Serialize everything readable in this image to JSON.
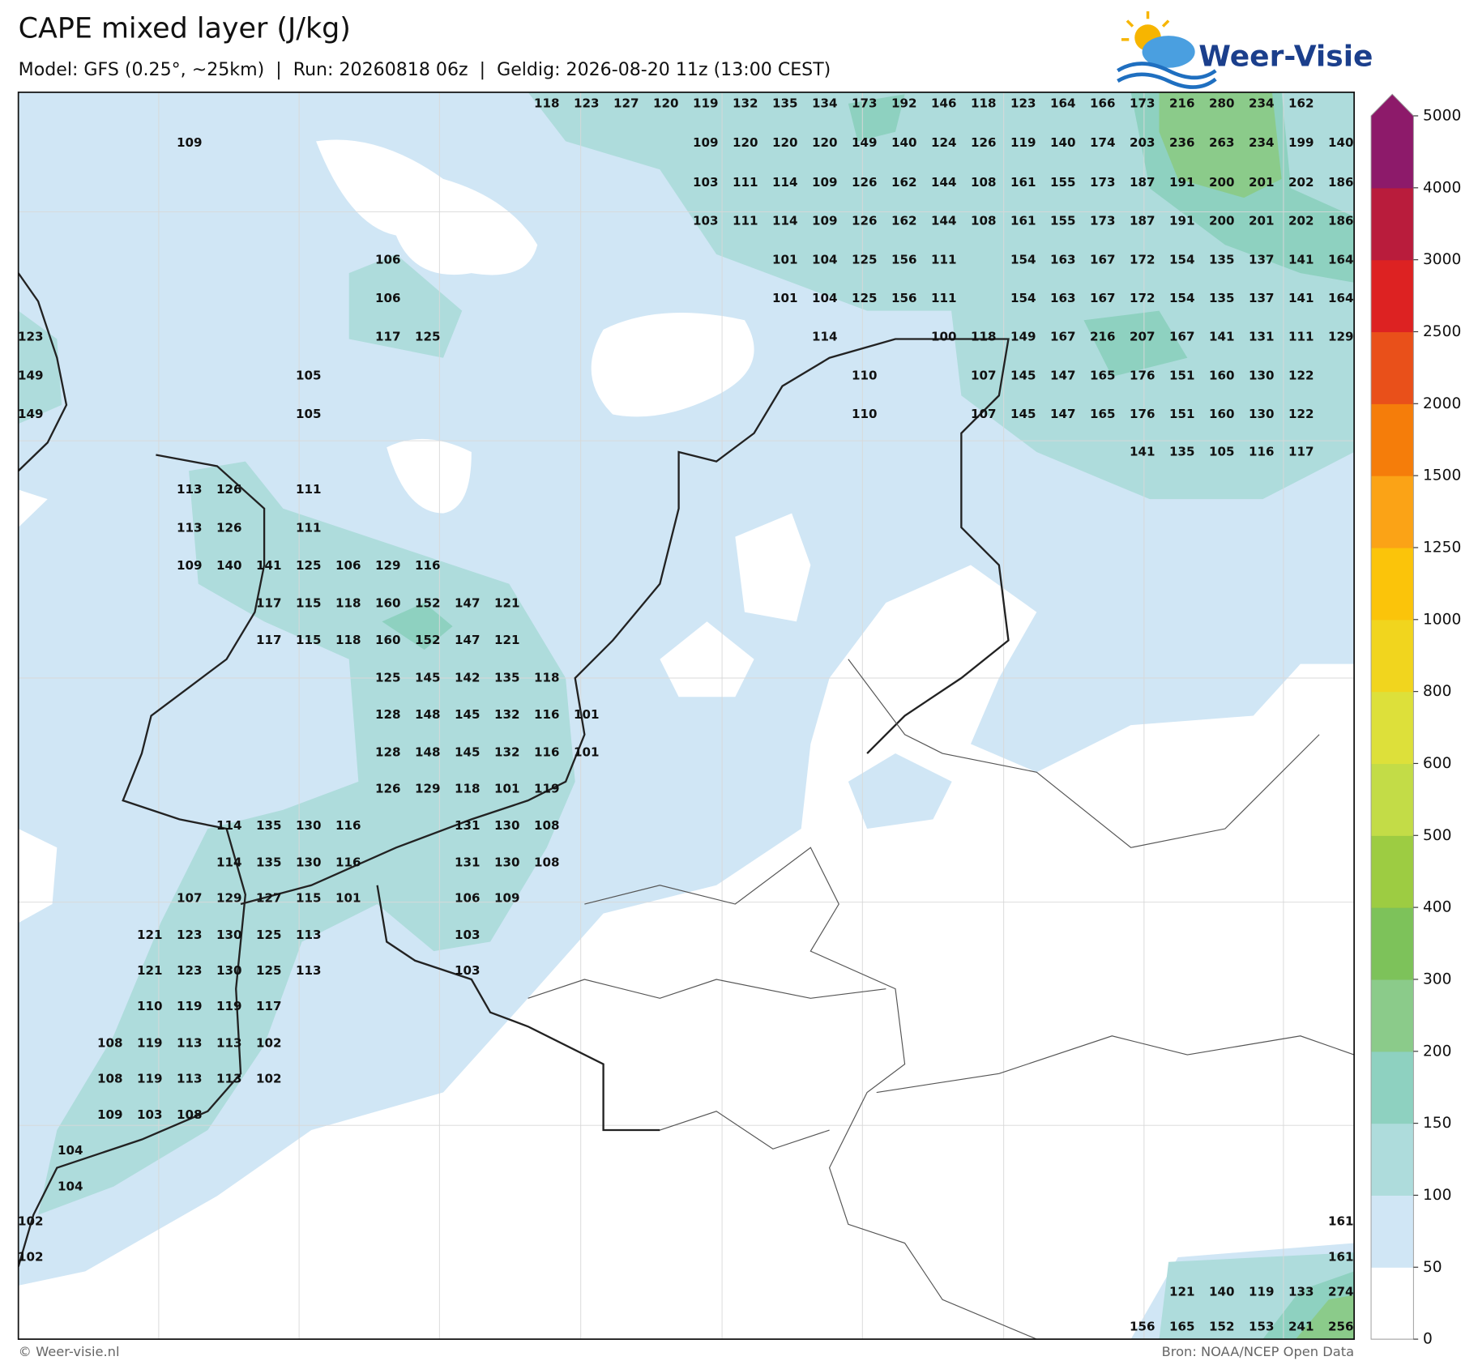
{
  "header": {
    "title": "CAPE mixed layer (J/kg)",
    "subtitle": "Model: GFS (0.25°, ~25km)  |  Run: 20260818 06z  |  Geldig: 2026-08-20 11z (13:00 CEST)",
    "logo": "Weer-Visie"
  },
  "map": {
    "grid": [
      [
        null,
        null,
        null,
        null,
        null,
        null,
        null,
        null,
        null,
        null,
        null,
        null,
        null,
        118,
        123,
        127,
        120,
        119,
        132,
        135,
        134,
        173,
        192,
        146,
        118,
        123,
        164,
        166,
        173,
        216,
        280,
        234,
        162,
        null
      ],
      [
        null,
        null,
        null,
        null,
        109,
        null,
        null,
        null,
        null,
        null,
        null,
        null,
        null,
        null,
        null,
        null,
        null,
        109,
        120,
        120,
        120,
        149,
        140,
        124,
        126,
        119,
        140,
        174,
        203,
        236,
        263,
        234,
        199,
        140
      ],
      [
        null,
        null,
        null,
        null,
        null,
        null,
        null,
        null,
        null,
        null,
        null,
        null,
        null,
        null,
        null,
        null,
        null,
        103,
        111,
        114,
        109,
        126,
        162,
        144,
        108,
        161,
        155,
        173,
        187,
        191,
        200,
        201,
        202,
        186
      ],
      [
        null,
        null,
        null,
        null,
        null,
        null,
        null,
        null,
        null,
        null,
        null,
        null,
        null,
        null,
        null,
        null,
        null,
        103,
        111,
        114,
        109,
        126,
        162,
        144,
        108,
        161,
        155,
        173,
        187,
        191,
        200,
        201,
        202,
        186
      ],
      [
        null,
        null,
        null,
        null,
        null,
        null,
        null,
        null,
        null,
        106,
        null,
        null,
        null,
        null,
        null,
        null,
        null,
        null,
        null,
        101,
        104,
        125,
        156,
        111,
        null,
        154,
        163,
        167,
        172,
        154,
        135,
        137,
        141,
        164
      ],
      [
        null,
        null,
        null,
        null,
        null,
        null,
        null,
        null,
        null,
        106,
        null,
        null,
        null,
        null,
        null,
        null,
        null,
        null,
        null,
        101,
        104,
        125,
        156,
        111,
        null,
        154,
        163,
        167,
        172,
        154,
        135,
        137,
        141,
        164
      ],
      [
        123,
        null,
        null,
        null,
        null,
        null,
        null,
        null,
        null,
        117,
        125,
        null,
        null,
        null,
        null,
        null,
        null,
        null,
        null,
        null,
        114,
        null,
        null,
        100,
        118,
        149,
        167,
        216,
        207,
        167,
        141,
        131,
        111,
        129
      ],
      [
        149,
        null,
        null,
        null,
        null,
        null,
        null,
        105,
        null,
        null,
        null,
        null,
        null,
        null,
        null,
        null,
        null,
        null,
        null,
        null,
        null,
        110,
        null,
        null,
        107,
        145,
        147,
        165,
        176,
        151,
        160,
        130,
        122,
        null
      ],
      [
        149,
        null,
        null,
        null,
        null,
        null,
        null,
        105,
        null,
        null,
        null,
        null,
        null,
        null,
        null,
        null,
        null,
        null,
        null,
        null,
        null,
        110,
        null,
        null,
        107,
        145,
        147,
        165,
        176,
        151,
        160,
        130,
        122,
        null
      ],
      [
        null,
        null,
        null,
        null,
        null,
        null,
        null,
        null,
        null,
        null,
        null,
        null,
        null,
        null,
        null,
        null,
        null,
        null,
        null,
        null,
        null,
        null,
        null,
        null,
        null,
        null,
        null,
        null,
        141,
        135,
        105,
        116,
        117,
        null
      ],
      [
        null,
        null,
        null,
        null,
        113,
        126,
        null,
        111,
        null,
        null,
        null,
        null,
        null,
        null,
        null,
        null,
        null,
        null,
        null,
        null,
        null,
        null,
        null,
        null,
        null,
        null,
        null,
        null,
        null,
        null,
        null,
        null,
        null,
        null
      ],
      [
        null,
        null,
        null,
        null,
        113,
        126,
        null,
        111,
        null,
        null,
        null,
        null,
        null,
        null,
        null,
        null,
        null,
        null,
        null,
        null,
        null,
        null,
        null,
        null,
        null,
        null,
        null,
        null,
        null,
        null,
        null,
        null,
        null,
        null
      ],
      [
        null,
        null,
        null,
        null,
        109,
        140,
        141,
        125,
        106,
        129,
        116,
        null,
        null,
        null,
        null,
        null,
        null,
        null,
        null,
        null,
        null,
        null,
        null,
        null,
        null,
        null,
        null,
        null,
        null,
        null,
        null,
        null,
        null,
        null
      ],
      [
        null,
        null,
        null,
        null,
        null,
        null,
        117,
        115,
        118,
        160,
        152,
        147,
        121,
        null,
        null,
        null,
        null,
        null,
        null,
        null,
        null,
        null,
        null,
        null,
        null,
        null,
        null,
        null,
        null,
        null,
        null,
        null,
        null,
        null
      ],
      [
        null,
        null,
        null,
        null,
        null,
        null,
        117,
        115,
        118,
        160,
        152,
        147,
        121,
        null,
        null,
        null,
        null,
        null,
        null,
        null,
        null,
        null,
        null,
        null,
        null,
        null,
        null,
        null,
        null,
        null,
        null,
        null,
        null,
        null
      ],
      [
        null,
        null,
        null,
        null,
        null,
        null,
        null,
        null,
        null,
        125,
        145,
        142,
        135,
        118,
        null,
        null,
        null,
        null,
        null,
        null,
        null,
        null,
        null,
        null,
        null,
        null,
        null,
        null,
        null,
        null,
        null,
        null,
        null,
        null
      ],
      [
        null,
        null,
        null,
        null,
        null,
        null,
        null,
        null,
        null,
        128,
        148,
        145,
        132,
        116,
        101,
        null,
        null,
        null,
        null,
        null,
        null,
        null,
        null,
        null,
        null,
        null,
        null,
        null,
        null,
        null,
        null,
        null,
        null,
        null
      ],
      [
        null,
        null,
        null,
        null,
        null,
        null,
        null,
        null,
        null,
        128,
        148,
        145,
        132,
        116,
        101,
        null,
        null,
        null,
        null,
        null,
        null,
        null,
        null,
        null,
        null,
        null,
        null,
        null,
        null,
        null,
        null,
        null,
        null,
        null
      ],
      [
        null,
        null,
        null,
        null,
        null,
        null,
        null,
        null,
        null,
        126,
        129,
        118,
        101,
        119,
        null,
        null,
        null,
        null,
        null,
        null,
        null,
        null,
        null,
        null,
        null,
        null,
        null,
        null,
        null,
        null,
        null,
        null,
        null,
        null
      ],
      [
        null,
        null,
        null,
        null,
        null,
        114,
        135,
        130,
        116,
        null,
        null,
        131,
        130,
        108,
        null,
        null,
        null,
        null,
        null,
        null,
        null,
        null,
        null,
        null,
        null,
        null,
        null,
        null,
        null,
        null,
        null,
        null,
        null,
        null
      ],
      [
        null,
        null,
        null,
        null,
        null,
        114,
        135,
        130,
        116,
        null,
        null,
        131,
        130,
        108,
        null,
        null,
        null,
        null,
        null,
        null,
        null,
        null,
        null,
        null,
        null,
        null,
        null,
        null,
        null,
        null,
        null,
        null,
        null,
        null
      ],
      [
        null,
        null,
        null,
        null,
        107,
        129,
        127,
        115,
        101,
        null,
        null,
        106,
        109,
        null,
        null,
        null,
        null,
        null,
        null,
        null,
        null,
        null,
        null,
        null,
        null,
        null,
        null,
        null,
        null,
        null,
        null,
        null,
        null,
        null
      ],
      [
        null,
        null,
        null,
        121,
        123,
        130,
        125,
        113,
        null,
        null,
        null,
        103,
        null,
        null,
        null,
        null,
        null,
        null,
        null,
        null,
        null,
        null,
        null,
        null,
        null,
        null,
        null,
        null,
        null,
        null,
        null,
        null,
        null,
        null
      ],
      [
        null,
        null,
        null,
        121,
        123,
        130,
        125,
        113,
        null,
        null,
        null,
        103,
        null,
        null,
        null,
        null,
        null,
        null,
        null,
        null,
        null,
        null,
        null,
        null,
        null,
        null,
        null,
        null,
        null,
        null,
        null,
        null,
        null,
        null
      ],
      [
        null,
        null,
        null,
        110,
        119,
        119,
        117,
        null,
        null,
        null,
        null,
        null,
        null,
        null,
        null,
        null,
        null,
        null,
        null,
        null,
        null,
        null,
        null,
        null,
        null,
        null,
        null,
        null,
        null,
        null,
        null,
        null,
        null,
        null
      ],
      [
        null,
        null,
        108,
        119,
        113,
        113,
        102,
        null,
        null,
        null,
        null,
        null,
        null,
        null,
        null,
        null,
        null,
        null,
        null,
        null,
        null,
        null,
        null,
        null,
        null,
        null,
        null,
        null,
        null,
        null,
        null,
        null,
        null,
        null
      ],
      [
        null,
        null,
        108,
        119,
        113,
        113,
        102,
        null,
        null,
        null,
        null,
        null,
        null,
        null,
        null,
        null,
        null,
        null,
        null,
        null,
        null,
        null,
        null,
        null,
        null,
        null,
        null,
        null,
        null,
        null,
        null,
        null,
        null,
        null
      ],
      [
        null,
        null,
        109,
        103,
        108,
        null,
        null,
        null,
        null,
        null,
        null,
        null,
        null,
        null,
        null,
        null,
        null,
        null,
        null,
        null,
        null,
        null,
        null,
        null,
        null,
        null,
        null,
        null,
        null,
        null,
        null,
        null,
        null,
        null
      ],
      [
        null,
        104,
        null,
        null,
        null,
        null,
        null,
        null,
        null,
        null,
        null,
        null,
        null,
        null,
        null,
        null,
        null,
        null,
        null,
        null,
        null,
        null,
        null,
        null,
        null,
        null,
        null,
        null,
        null,
        null,
        null,
        null,
        null,
        null
      ],
      [
        null,
        104,
        null,
        null,
        null,
        null,
        null,
        null,
        null,
        null,
        null,
        null,
        null,
        null,
        null,
        null,
        null,
        null,
        null,
        null,
        null,
        null,
        null,
        null,
        null,
        null,
        null,
        null,
        null,
        null,
        null,
        null,
        null,
        null
      ],
      [
        102,
        null,
        null,
        null,
        null,
        null,
        null,
        null,
        null,
        null,
        null,
        null,
        null,
        null,
        null,
        null,
        null,
        null,
        null,
        null,
        null,
        null,
        null,
        null,
        null,
        null,
        null,
        null,
        null,
        null,
        null,
        null,
        null,
        161
      ],
      [
        102,
        null,
        null,
        null,
        null,
        null,
        null,
        null,
        null,
        null,
        null,
        null,
        null,
        null,
        null,
        null,
        null,
        null,
        null,
        null,
        null,
        null,
        null,
        null,
        null,
        null,
        null,
        null,
        null,
        null,
        null,
        null,
        null,
        161
      ],
      [
        null,
        null,
        null,
        null,
        null,
        null,
        null,
        null,
        null,
        null,
        null,
        null,
        null,
        null,
        null,
        null,
        null,
        null,
        null,
        null,
        null,
        null,
        null,
        null,
        null,
        null,
        null,
        null,
        null,
        121,
        140,
        119,
        133,
        274
      ],
      [
        null,
        null,
        null,
        null,
        null,
        null,
        null,
        null,
        null,
        null,
        null,
        null,
        null,
        null,
        null,
        null,
        null,
        null,
        null,
        null,
        null,
        null,
        null,
        null,
        null,
        null,
        null,
        null,
        156,
        165,
        152,
        153,
        241,
        256
      ]
    ]
  },
  "colorbar": {
    "levels": [
      0,
      50,
      100,
      150,
      200,
      300,
      400,
      500,
      600,
      800,
      1000,
      1250,
      1500,
      2000,
      2500,
      3000,
      4000,
      5000
    ],
    "colors": [
      "#ffffff",
      "#d0e6f5",
      "#aedcdc",
      "#8ed1c0",
      "#8bcb8a",
      "#7dc25a",
      "#9dcc42",
      "#c3dc47",
      "#dde03a",
      "#f1d51e",
      "#fbc40a",
      "#fba316",
      "#f57d0a",
      "#e9501a",
      "#dd2222",
      "#b91c3c",
      "#8d1a6a"
    ]
  },
  "footer": {
    "left": "© Weer-visie.nl",
    "right": "Bron: NOAA/NCEP Open Data"
  }
}
